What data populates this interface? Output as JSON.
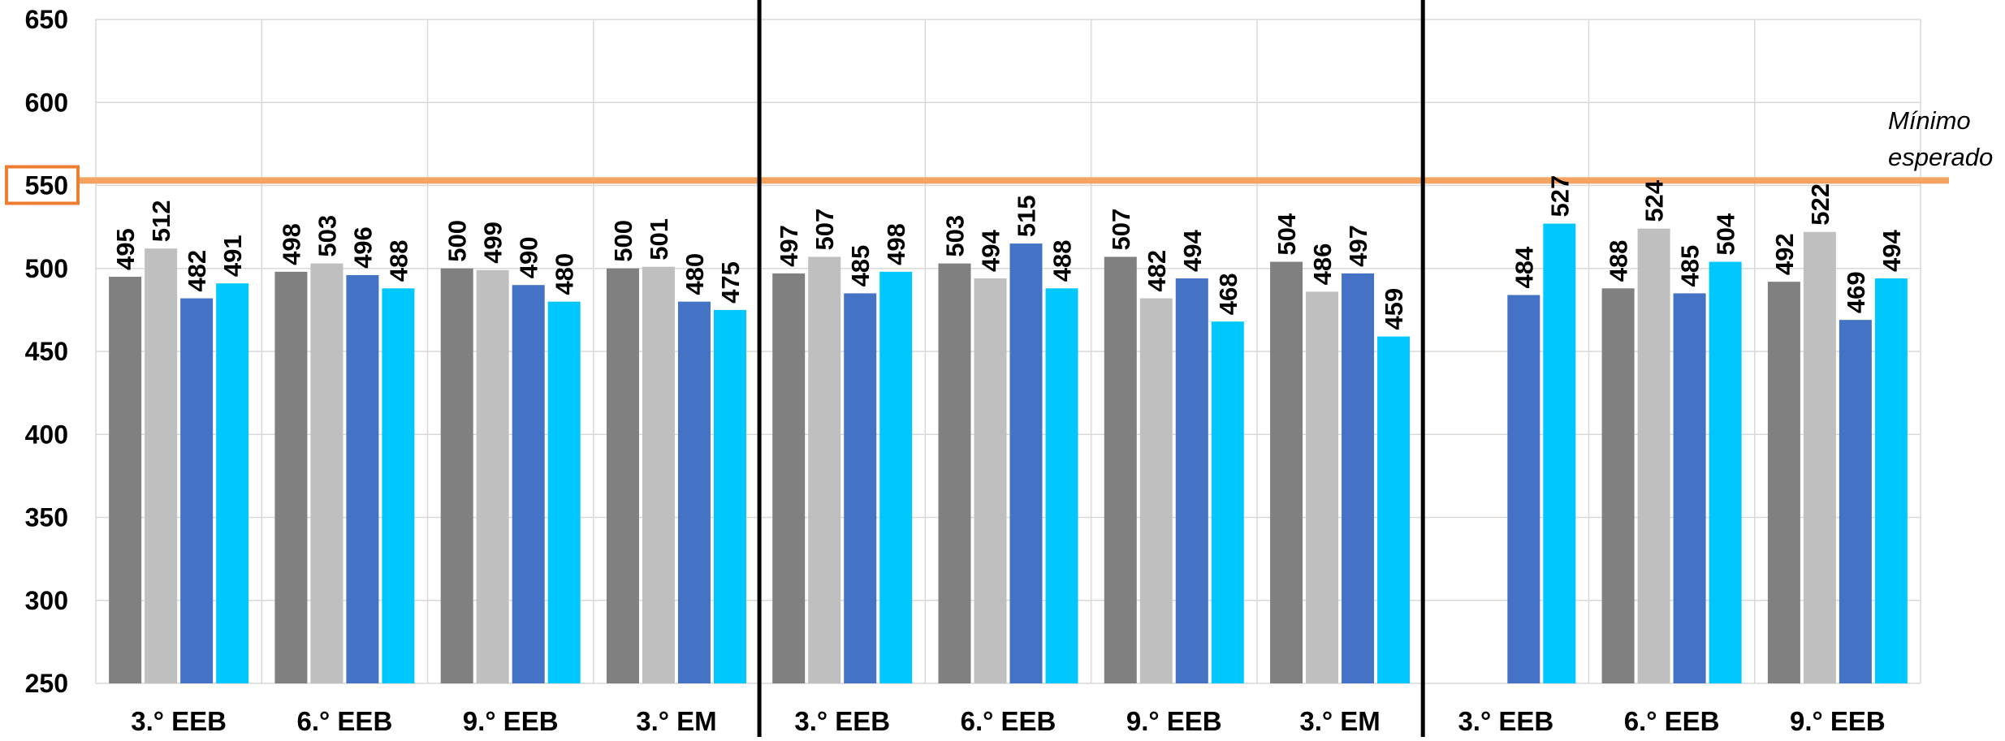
{
  "chart_data": {
    "type": "bar",
    "ylim": [
      250,
      650
    ],
    "yticks": [
      250,
      300,
      350,
      400,
      450,
      500,
      550,
      600,
      650
    ],
    "highlighted_tick": 550,
    "grid": true,
    "colors": [
      "#808080",
      "#BFBFBF",
      "#4472C4",
      "#00C8FF"
    ],
    "separator_color": "#000000",
    "threshold": {
      "value": 553,
      "label_line1": "Mínimo",
      "label_line2": "esperado",
      "color": "#F4A460",
      "box_color": "#ED7D31"
    },
    "groups": [
      {
        "categories": [
          "3.° EEB",
          "6.° EEB",
          "9.° EEB",
          "3.° EM"
        ],
        "values": [
          [
            495,
            512,
            482,
            491
          ],
          [
            498,
            503,
            496,
            488
          ],
          [
            500,
            499,
            490,
            480
          ],
          [
            500,
            501,
            480,
            475
          ]
        ]
      },
      {
        "categories": [
          "3.° EEB",
          "6.° EEB",
          "9.° EEB",
          "3.° EM"
        ],
        "values": [
          [
            497,
            507,
            485,
            498
          ],
          [
            503,
            494,
            515,
            488
          ],
          [
            507,
            482,
            494,
            468
          ],
          [
            504,
            486,
            497,
            459
          ]
        ]
      },
      {
        "categories": [
          "3.° EEB",
          "6.° EEB",
          "9.° EEB"
        ],
        "values": [
          [
            null,
            null,
            484,
            527
          ],
          [
            488,
            524,
            485,
            504
          ],
          [
            492,
            522,
            469,
            494
          ]
        ]
      }
    ]
  }
}
